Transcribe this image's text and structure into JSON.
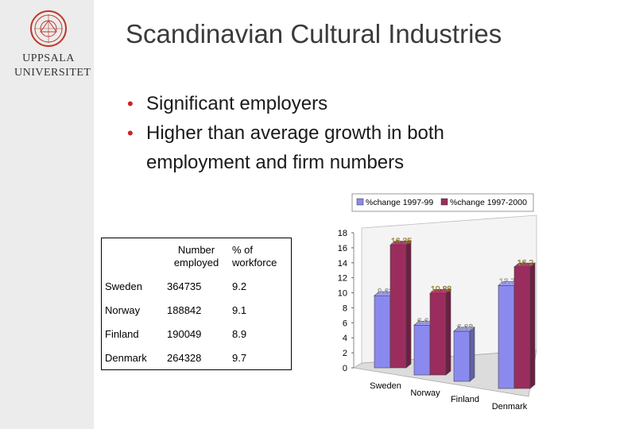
{
  "logo": {
    "line1": "UPPSALA",
    "line2": "UNIVERSITET"
  },
  "slide": {
    "title": "Scandinavian Cultural Industries",
    "bullets": [
      "Significant employers",
      "Higher than average growth in both employment and firm numbers"
    ]
  },
  "table": {
    "headers": [
      "",
      "Number employed",
      "% of workforce"
    ],
    "rows": [
      [
        "Sweden",
        "364735",
        "9.2"
      ],
      [
        "Norway",
        "188842",
        "9.1"
      ],
      [
        "Finland",
        "190049",
        "8.9"
      ],
      [
        "Denmark",
        "264328",
        "9.7"
      ]
    ]
  },
  "chart_data": {
    "type": "bar",
    "categories": [
      "Sweden",
      "Norway",
      "Finland",
      "Denmark"
    ],
    "series": [
      {
        "name": "%change 1997-99",
        "values": [
          9.62,
          6.64,
          6.68,
          13.71
        ],
        "color": "#8a8aee"
      },
      {
        "name": "%change 1997-2000",
        "values": [
          16.35,
          10.88,
          null,
          16.2
        ],
        "color": "#9a2d5e"
      }
    ],
    "ylim": [
      0,
      18
    ],
    "yticks": [
      0,
      2,
      4,
      6,
      8,
      10,
      12,
      14,
      16,
      18
    ],
    "grid": false,
    "legend": "top",
    "three_d": true
  }
}
